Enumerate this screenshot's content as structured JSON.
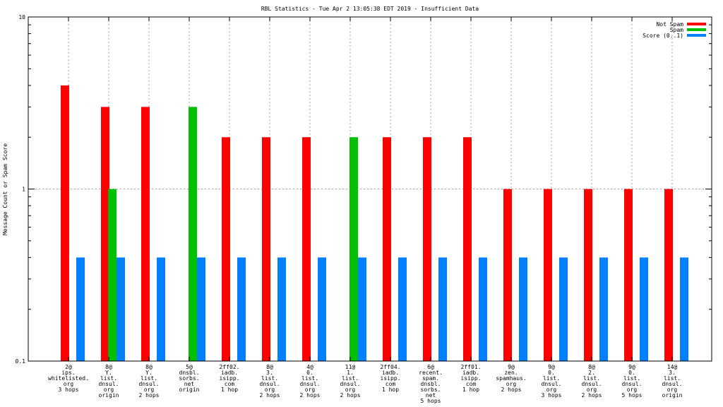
{
  "chart_data": {
    "type": "bar",
    "title": "RBL Statistics - Tue Apr  2 13:05:38 EDT 2019 - Insufficient Data",
    "ylabel": "Message Count or Spam Score",
    "xlabel": "",
    "y_scale": "log",
    "ylim": [
      0.1,
      10
    ],
    "y_ticks": [
      "0.1",
      "1",
      "10"
    ],
    "grid": true,
    "legend_position": "top-right",
    "categories": [
      [
        "2@",
        "ips.",
        "whitelisted.",
        "org",
        "3 hops"
      ],
      [
        "8@",
        "Y.",
        "list.",
        "dnsul.",
        "org",
        "origin"
      ],
      [
        "8@",
        "Y.",
        "list.",
        "dnsul.",
        "org",
        "2 hops"
      ],
      [
        "5@",
        "dnsbl.",
        "sorbs.",
        "net",
        "origin"
      ],
      [
        "2ff02.",
        "iadb.",
        "isipp.",
        "com",
        "1 hop"
      ],
      [
        "8@",
        "3.",
        "list.",
        "dnsul.",
        "org",
        "2 hops"
      ],
      [
        "4@",
        "0.",
        "list.",
        "dnsul.",
        "org",
        "2 hops"
      ],
      [
        "11@",
        "1.",
        "list.",
        "dnsul.",
        "org",
        "2 hops"
      ],
      [
        "2ff04.",
        "iadb.",
        "isipp.",
        "com",
        "1 hop"
      ],
      [
        "6@",
        "recent.",
        "spam.",
        "dnsbl.",
        "sorbs.",
        "net",
        "5 hops"
      ],
      [
        "2ff01.",
        "iadb.",
        "isipp.",
        "com",
        "1 hop"
      ],
      [
        "9@",
        "zen.",
        "spamhaus.",
        "org",
        "2 hops"
      ],
      [
        "9@",
        "0.",
        "list.",
        "dnsul.",
        "org",
        "3 hops"
      ],
      [
        "8@",
        "2.",
        "list.",
        "dnsul.",
        "org",
        "2 hops"
      ],
      [
        "9@",
        "0.",
        "list.",
        "dnsul.",
        "org",
        "5 hops"
      ],
      [
        "14@",
        "3.",
        "list.",
        "dnsul.",
        "org",
        "origin"
      ]
    ],
    "series": [
      {
        "name": "Not Spam",
        "color": "#ff0000",
        "values": [
          4,
          3,
          3,
          null,
          2,
          2,
          2,
          null,
          2,
          2,
          2,
          1,
          1,
          1,
          1,
          1
        ]
      },
      {
        "name": "Spam",
        "color": "#00c000",
        "values": [
          null,
          1,
          null,
          3,
          null,
          null,
          null,
          2,
          null,
          null,
          null,
          null,
          null,
          null,
          null,
          null
        ]
      },
      {
        "name": "Score (0..1)",
        "color": "#0080ff",
        "values": [
          0.4,
          0.4,
          0.4,
          0.4,
          0.4,
          0.4,
          0.4,
          0.4,
          0.4,
          0.4,
          0.4,
          0.4,
          0.4,
          0.4,
          0.4,
          0.4
        ]
      }
    ]
  }
}
